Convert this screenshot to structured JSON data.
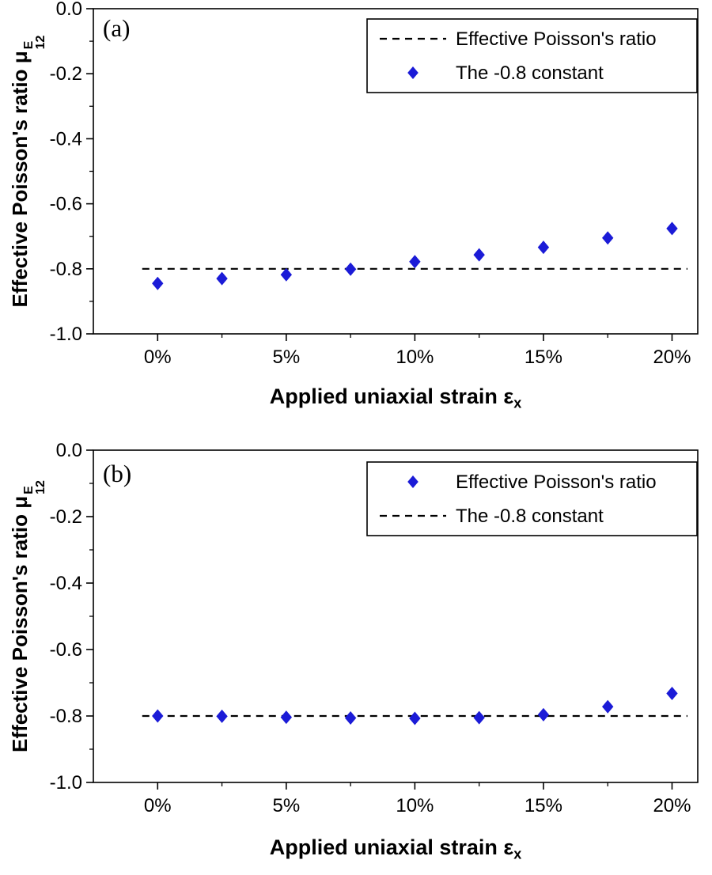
{
  "figure": {
    "background": "#ffffff",
    "accent_blue": "#1b1bd7",
    "line_color": "#000000"
  },
  "chart_data": [
    {
      "type": "scatter",
      "panel_label": "(a)",
      "x_percent": [
        0,
        2.5,
        5,
        7.5,
        10,
        12.5,
        15,
        17.5,
        20
      ],
      "series_values": [
        -0.845,
        -0.83,
        -0.818,
        -0.801,
        -0.778,
        -0.757,
        -0.734,
        -0.705,
        -0.676
      ],
      "constant_line_y": -0.8,
      "xlabel": {
        "text": "Applied uniaxial strain ε",
        "sub": "x"
      },
      "ylabel": {
        "text": "Effective Poisson's ratio μ",
        "sup": "E",
        "sub": "12"
      },
      "ylim": [
        -1.0,
        0.0
      ],
      "xlim_percent": [
        -2.5,
        21
      ],
      "ytick_values": [
        0,
        -0.2,
        -0.4,
        -0.6,
        -0.8,
        -1.0
      ],
      "ytick_labels": [
        "0.0",
        "-0.2",
        "-0.4",
        "-0.6",
        "-0.8",
        "-1.0"
      ],
      "ytick_minor_values": [
        -0.1,
        -0.3,
        -0.5,
        -0.7,
        -0.9
      ],
      "xtick_major_percent": [
        0,
        5,
        10,
        15,
        20
      ],
      "xtick_labels": [
        "0%",
        "5%",
        "10%",
        "15%",
        "20%"
      ],
      "xtick_minor_percent": [
        2.5,
        7.5,
        12.5,
        17.5
      ],
      "legend_position": "top-right",
      "legend": [
        {
          "marker": "dash",
          "label": "Effective Poisson's ratio"
        },
        {
          "marker": "diamond",
          "label": "The -0.8 constant"
        }
      ]
    },
    {
      "type": "scatter",
      "panel_label": "(b)",
      "x_percent": [
        0,
        2.5,
        5,
        7.5,
        10,
        12.5,
        15,
        17.5,
        20
      ],
      "series_values": [
        -0.8,
        -0.801,
        -0.804,
        -0.806,
        -0.807,
        -0.805,
        -0.796,
        -0.772,
        -0.732
      ],
      "constant_line_y": -0.8,
      "xlabel": {
        "text": "Applied uniaxial strain ε",
        "sub": "x"
      },
      "ylabel": {
        "text": "Effective Poisson's ratio μ",
        "sup": "E",
        "sub": "12"
      },
      "ylim": [
        -1.0,
        0.0
      ],
      "xlim_percent": [
        -2.5,
        21
      ],
      "ytick_values": [
        0,
        -0.2,
        -0.4,
        -0.6,
        -0.8,
        -1.0
      ],
      "ytick_labels": [
        "0.0",
        "-0.2",
        "-0.4",
        "-0.6",
        "-0.8",
        "-1.0"
      ],
      "ytick_minor_values": [
        -0.1,
        -0.3,
        -0.5,
        -0.7,
        -0.9
      ],
      "xtick_major_percent": [
        0,
        5,
        10,
        15,
        20
      ],
      "xtick_labels": [
        "0%",
        "5%",
        "10%",
        "15%",
        "20%"
      ],
      "xtick_minor_percent": [
        2.5,
        7.5,
        12.5,
        17.5
      ],
      "legend_position": "top-right",
      "legend": [
        {
          "marker": "diamond",
          "label": "Effective Poisson's ratio"
        },
        {
          "marker": "dash",
          "label": "The -0.8 constant"
        }
      ]
    }
  ]
}
